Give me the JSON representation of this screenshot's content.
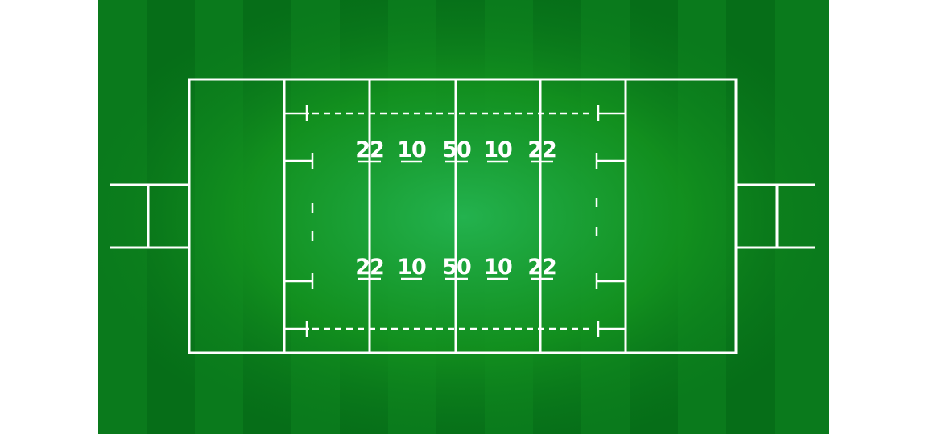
{
  "field": {
    "grass_color": "#0a7a1c",
    "grass_light": "#23b24e",
    "grass_dark": "#066616",
    "line_color": "#ffffff"
  },
  "markings": {
    "top_row": [
      "22",
      "10",
      "50",
      "10",
      "22"
    ],
    "bottom_row": [
      "22",
      "10",
      "50",
      "10",
      "22"
    ]
  }
}
